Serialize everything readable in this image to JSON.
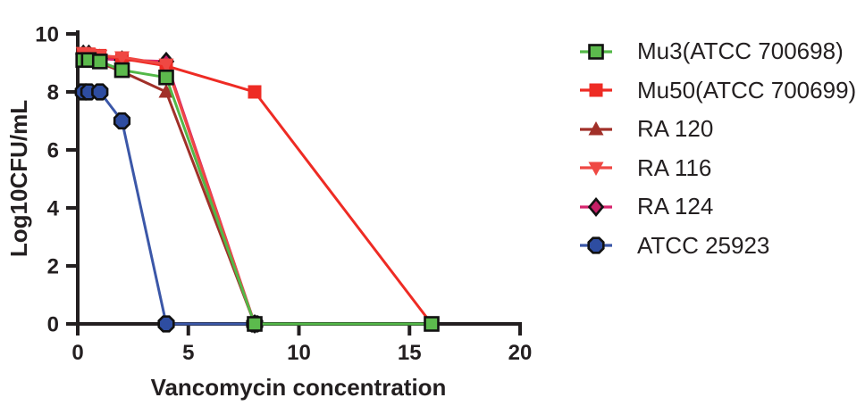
{
  "chart_data": {
    "type": "line",
    "title": "",
    "xlabel": "Vancomycin concentration",
    "ylabel": "Log10CFU/mL",
    "xlim": [
      0,
      20
    ],
    "ylim": [
      0,
      10
    ],
    "x_ticks": [
      0,
      5,
      10,
      15,
      20
    ],
    "y_ticks": [
      0,
      2,
      4,
      6,
      8,
      10
    ],
    "grid": false,
    "legend_position": "right",
    "axis_color": "#231f20",
    "series": [
      {
        "name": "Mu3(ATCC 700698)",
        "marker": "square",
        "line_color": "#53B848",
        "marker_fill": "#5CBA4D",
        "marker_outline": "#111111",
        "x": [
          0.25,
          0.5,
          1,
          2,
          4,
          8,
          16
        ],
        "y": [
          9.1,
          9.1,
          9.05,
          8.75,
          8.5,
          0,
          0
        ]
      },
      {
        "name": "Mu50(ATCC 700699)",
        "marker": "square",
        "line_color": "#EE2B24",
        "marker_fill": "#EE2B24",
        "marker_outline": "none",
        "x": [
          0.25,
          0.5,
          1,
          2,
          4,
          8,
          16
        ],
        "y": [
          9.3,
          9.3,
          9.25,
          9.15,
          8.9,
          8,
          0
        ]
      },
      {
        "name": "RA 120",
        "marker": "triangle-up",
        "line_color": "#A13029",
        "marker_fill": "#A13029",
        "marker_outline": "none",
        "x": [
          0.25,
          0.5,
          1,
          2,
          4,
          8
        ],
        "y": [
          9.05,
          9.05,
          9.0,
          8.7,
          8.0,
          0
        ]
      },
      {
        "name": "RA 116",
        "marker": "triangle-down",
        "line_color": "#EF4843",
        "marker_fill": "#EF4843",
        "marker_outline": "none",
        "x": [
          0.25,
          0.5,
          1,
          2,
          4,
          8
        ],
        "y": [
          9.35,
          9.3,
          9.25,
          9.2,
          8.95,
          0
        ]
      },
      {
        "name": "RA 124",
        "marker": "diamond",
        "line_color": "#D6256E",
        "marker_fill": "#C51F66",
        "marker_outline": "#111111",
        "x": [
          0.25,
          0.5,
          1,
          2,
          4,
          8
        ],
        "y": [
          9.3,
          9.3,
          9.15,
          9.1,
          9.05,
          0
        ]
      },
      {
        "name": "ATCC 25923",
        "marker": "octagon",
        "line_color": "#3B57A8",
        "marker_fill": "#2E4DA1",
        "marker_outline": "#111111",
        "x": [
          0.25,
          0.5,
          1,
          2,
          4,
          8
        ],
        "y": [
          8,
          8,
          8,
          7,
          0,
          0
        ]
      }
    ],
    "draw_order": [
      4,
      2,
      1,
      3,
      5,
      0
    ]
  }
}
